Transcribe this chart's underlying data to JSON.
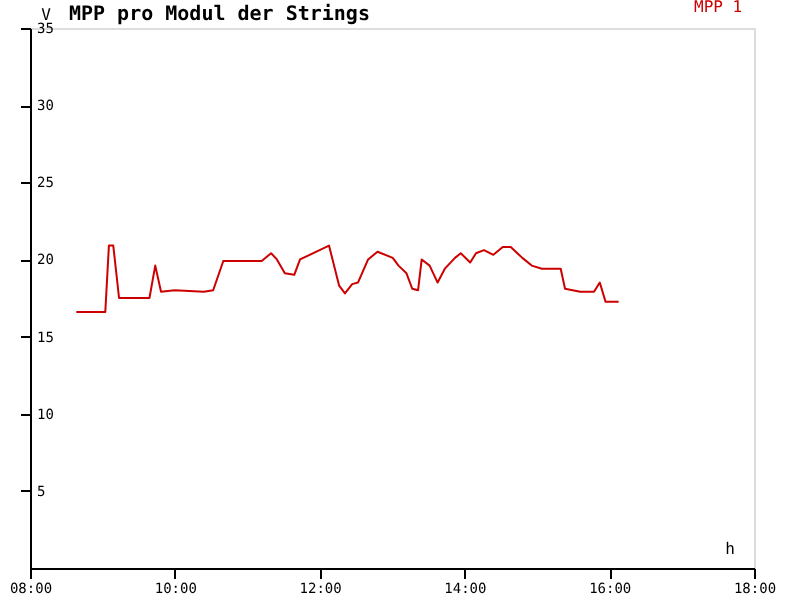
{
  "chart_data": {
    "type": "line",
    "title": "MPP pro Modul der Strings",
    "xlabel": "h",
    "ylabel": "V",
    "xlim": [
      8,
      18
    ],
    "xticks": [
      {
        "value": 8,
        "label": "08:00"
      },
      {
        "value": 10,
        "label": "10:00"
      },
      {
        "value": 12,
        "label": "12:00"
      },
      {
        "value": 14,
        "label": "14:00"
      },
      {
        "value": 16,
        "label": "16:00"
      },
      {
        "value": 18,
        "label": "18:00"
      }
    ],
    "ylim": [
      0,
      35
    ],
    "yticks": [
      5,
      10,
      15,
      20,
      25,
      30,
      35
    ],
    "grid": false,
    "legend": "top right",
    "marker": "none",
    "line_style": "solid",
    "series": [
      {
        "name": "MPP 1",
        "color": "#cc0000",
        "x": [
          8.64,
          9.04,
          9.09,
          9.15,
          9.23,
          9.65,
          9.73,
          9.81,
          10.0,
          10.4,
          10.53,
          10.67,
          10.8,
          11.2,
          11.33,
          11.41,
          11.52,
          11.65,
          11.73,
          12.0,
          12.13,
          12.27,
          12.35,
          12.45,
          12.53,
          12.67,
          12.8,
          13.01,
          13.09,
          13.2,
          13.28,
          13.36,
          13.41,
          13.52,
          13.63,
          13.73,
          13.87,
          13.95,
          14.08,
          14.16,
          14.27,
          14.4,
          14.53,
          14.64,
          14.8,
          14.93,
          15.07,
          15.33,
          15.39,
          15.6,
          15.79,
          15.87,
          15.95,
          16.13
        ],
        "values": [
          16.6,
          16.6,
          20.9,
          20.9,
          17.5,
          17.5,
          19.6,
          17.9,
          18.0,
          17.9,
          18.0,
          19.9,
          19.9,
          19.9,
          20.4,
          20.0,
          19.1,
          19.0,
          20.0,
          20.6,
          20.9,
          18.3,
          17.8,
          18.4,
          18.5,
          20.0,
          20.5,
          20.1,
          19.6,
          19.1,
          18.1,
          18.0,
          20.0,
          19.6,
          18.5,
          19.4,
          20.1,
          20.4,
          19.8,
          20.4,
          20.6,
          20.3,
          20.8,
          20.8,
          20.1,
          19.6,
          19.4,
          19.4,
          18.1,
          17.9,
          17.9,
          18.5,
          17.25,
          17.25
        ]
      }
    ]
  }
}
